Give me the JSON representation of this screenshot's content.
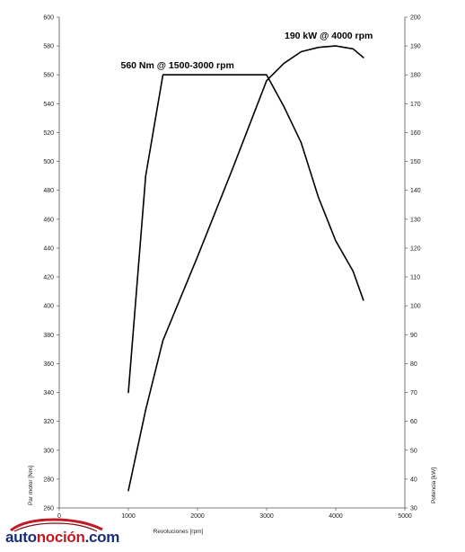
{
  "chart_data": {
    "type": "line",
    "xlabel": "Revoluciones [rpm]",
    "ylabel_left": "Par motor [Nm]",
    "ylabel_right": "Potencia [kW]",
    "xlim": [
      0,
      5000
    ],
    "ylim_left": [
      260,
      600
    ],
    "ylim_right": [
      30,
      200
    ],
    "x_ticks": [
      0,
      1000,
      2000,
      3000,
      4000,
      5000
    ],
    "y_left_ticks": [
      260,
      280,
      300,
      320,
      340,
      360,
      380,
      400,
      420,
      440,
      460,
      480,
      500,
      520,
      540,
      560,
      580,
      600
    ],
    "y_right_ticks": [
      30,
      40,
      50,
      60,
      70,
      80,
      90,
      100,
      110,
      120,
      130,
      140,
      150,
      160,
      170,
      180,
      190,
      200
    ],
    "grid": false,
    "series": [
      {
        "axis": "left",
        "x": [
          1000,
          1250,
          1500,
          2000,
          2500,
          3000,
          3250,
          3500,
          3750,
          4000,
          4250,
          4400
        ],
        "y": [
          340,
          490,
          560,
          560,
          560,
          560,
          538,
          513,
          475,
          445,
          424,
          404
        ]
      },
      {
        "axis": "right",
        "x": [
          1000,
          1250,
          1500,
          2000,
          2500,
          3000,
          3250,
          3500,
          3750,
          4000,
          4250,
          4400
        ],
        "y": [
          36,
          64,
          88,
          117,
          147,
          178,
          184,
          188,
          189.5,
          190,
          189,
          186
        ]
      }
    ],
    "annotations": [
      {
        "text": "560 Nm @ 1500-3000 rpm",
        "x": 1500,
        "y": 560,
        "axis": "left"
      },
      {
        "text": "190 kW @ 4000 rpm",
        "x": 4000,
        "y": 190,
        "axis": "right"
      }
    ]
  },
  "logo": {
    "text_part1": "auto",
    "text_part2": "noción",
    "text_part3": ".com"
  }
}
